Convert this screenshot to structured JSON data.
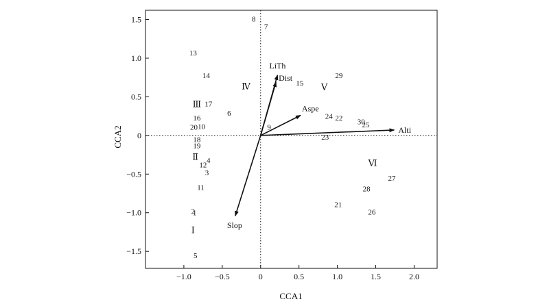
{
  "chart_data": {
    "type": "scatter",
    "subtype": "CCA biplot",
    "xlabel": "CCA1",
    "ylabel": "CCA2",
    "xlim": [
      -1.5,
      2.3
    ],
    "ylim": [
      -1.72,
      1.62
    ],
    "xticks": [
      -1.0,
      -0.5,
      0,
      0.5,
      1.0,
      1.5,
      2.0
    ],
    "xtick_labels": [
      "−1.0",
      "−0.5",
      "0",
      "0.5",
      "1.0",
      "1.5",
      "2.0"
    ],
    "yticks": [
      1.5,
      1.0,
      0.5,
      0,
      -0.5,
      -1.0,
      -1.5
    ],
    "ytick_labels": [
      "1.5",
      "1.0",
      "0.5",
      "0",
      "−0.5",
      "−1.0",
      "−1.5"
    ],
    "grid": false,
    "zero_lines": "dotted",
    "sites": [
      {
        "label": "8",
        "x": -0.09,
        "y": 1.51
      },
      {
        "label": "7",
        "x": 0.07,
        "y": 1.41
      },
      {
        "label": "13",
        "x": -0.88,
        "y": 1.07
      },
      {
        "label": "14",
        "x": -0.71,
        "y": 0.78
      },
      {
        "label": "29",
        "x": 1.02,
        "y": 0.78
      },
      {
        "label": "15",
        "x": 0.51,
        "y": 0.68
      },
      {
        "label": "17",
        "x": -0.68,
        "y": 0.41
      },
      {
        "label": "6",
        "x": -0.41,
        "y": 0.29
      },
      {
        "label": "16",
        "x": -0.83,
        "y": 0.23
      },
      {
        "label": "24",
        "x": 0.89,
        "y": 0.25
      },
      {
        "label": "22",
        "x": 1.02,
        "y": 0.23
      },
      {
        "label": "30",
        "x": 1.31,
        "y": 0.18
      },
      {
        "label": "25",
        "x": 1.37,
        "y": 0.14
      },
      {
        "label": "20",
        "x": -0.87,
        "y": 0.11
      },
      {
        "label": "10",
        "x": -0.77,
        "y": 0.12
      },
      {
        "label": "9",
        "x": 0.11,
        "y": 0.11
      },
      {
        "label": "23",
        "x": 0.84,
        "y": -0.02
      },
      {
        "label": "18",
        "x": -0.83,
        "y": -0.05
      },
      {
        "label": "19",
        "x": -0.83,
        "y": -0.13
      },
      {
        "label": "4",
        "x": -0.68,
        "y": -0.32
      },
      {
        "label": "12",
        "x": -0.75,
        "y": -0.38
      },
      {
        "label": "3",
        "x": -0.7,
        "y": -0.48
      },
      {
        "label": "11",
        "x": -0.78,
        "y": -0.67
      },
      {
        "label": "21",
        "x": 1.01,
        "y": -0.89
      },
      {
        "label": "27",
        "x": 1.71,
        "y": -0.55
      },
      {
        "label": "28",
        "x": 1.38,
        "y": -0.69
      },
      {
        "label": "26",
        "x": 1.45,
        "y": -0.99
      },
      {
        "label": "2",
        "x": -0.88,
        "y": -0.98
      },
      {
        "label": "1",
        "x": -0.86,
        "y": -1.0
      },
      {
        "label": "5",
        "x": -0.85,
        "y": -1.55
      }
    ],
    "groups": [
      {
        "label": "Ⅰ",
        "x": -0.88,
        "y": -1.22
      },
      {
        "label": "Ⅱ",
        "x": -0.85,
        "y": -0.27
      },
      {
        "label": "Ⅲ",
        "x": -0.83,
        "y": 0.41
      },
      {
        "label": "Ⅳ",
        "x": -0.19,
        "y": 0.64
      },
      {
        "label": "Ⅴ",
        "x": 0.83,
        "y": 0.63
      },
      {
        "label": "Ⅵ",
        "x": 1.46,
        "y": -0.35
      }
    ],
    "arrows": [
      {
        "label": "LiTh",
        "x": 0.22,
        "y": 0.78
      },
      {
        "label": "Dist",
        "x": 0.2,
        "y": 0.69
      },
      {
        "label": "Aspe",
        "x": 0.52,
        "y": 0.26
      },
      {
        "label": "Alti",
        "x": 1.74,
        "y": 0.07
      },
      {
        "label": "Slop",
        "x": -0.33,
        "y": -1.04
      }
    ]
  }
}
